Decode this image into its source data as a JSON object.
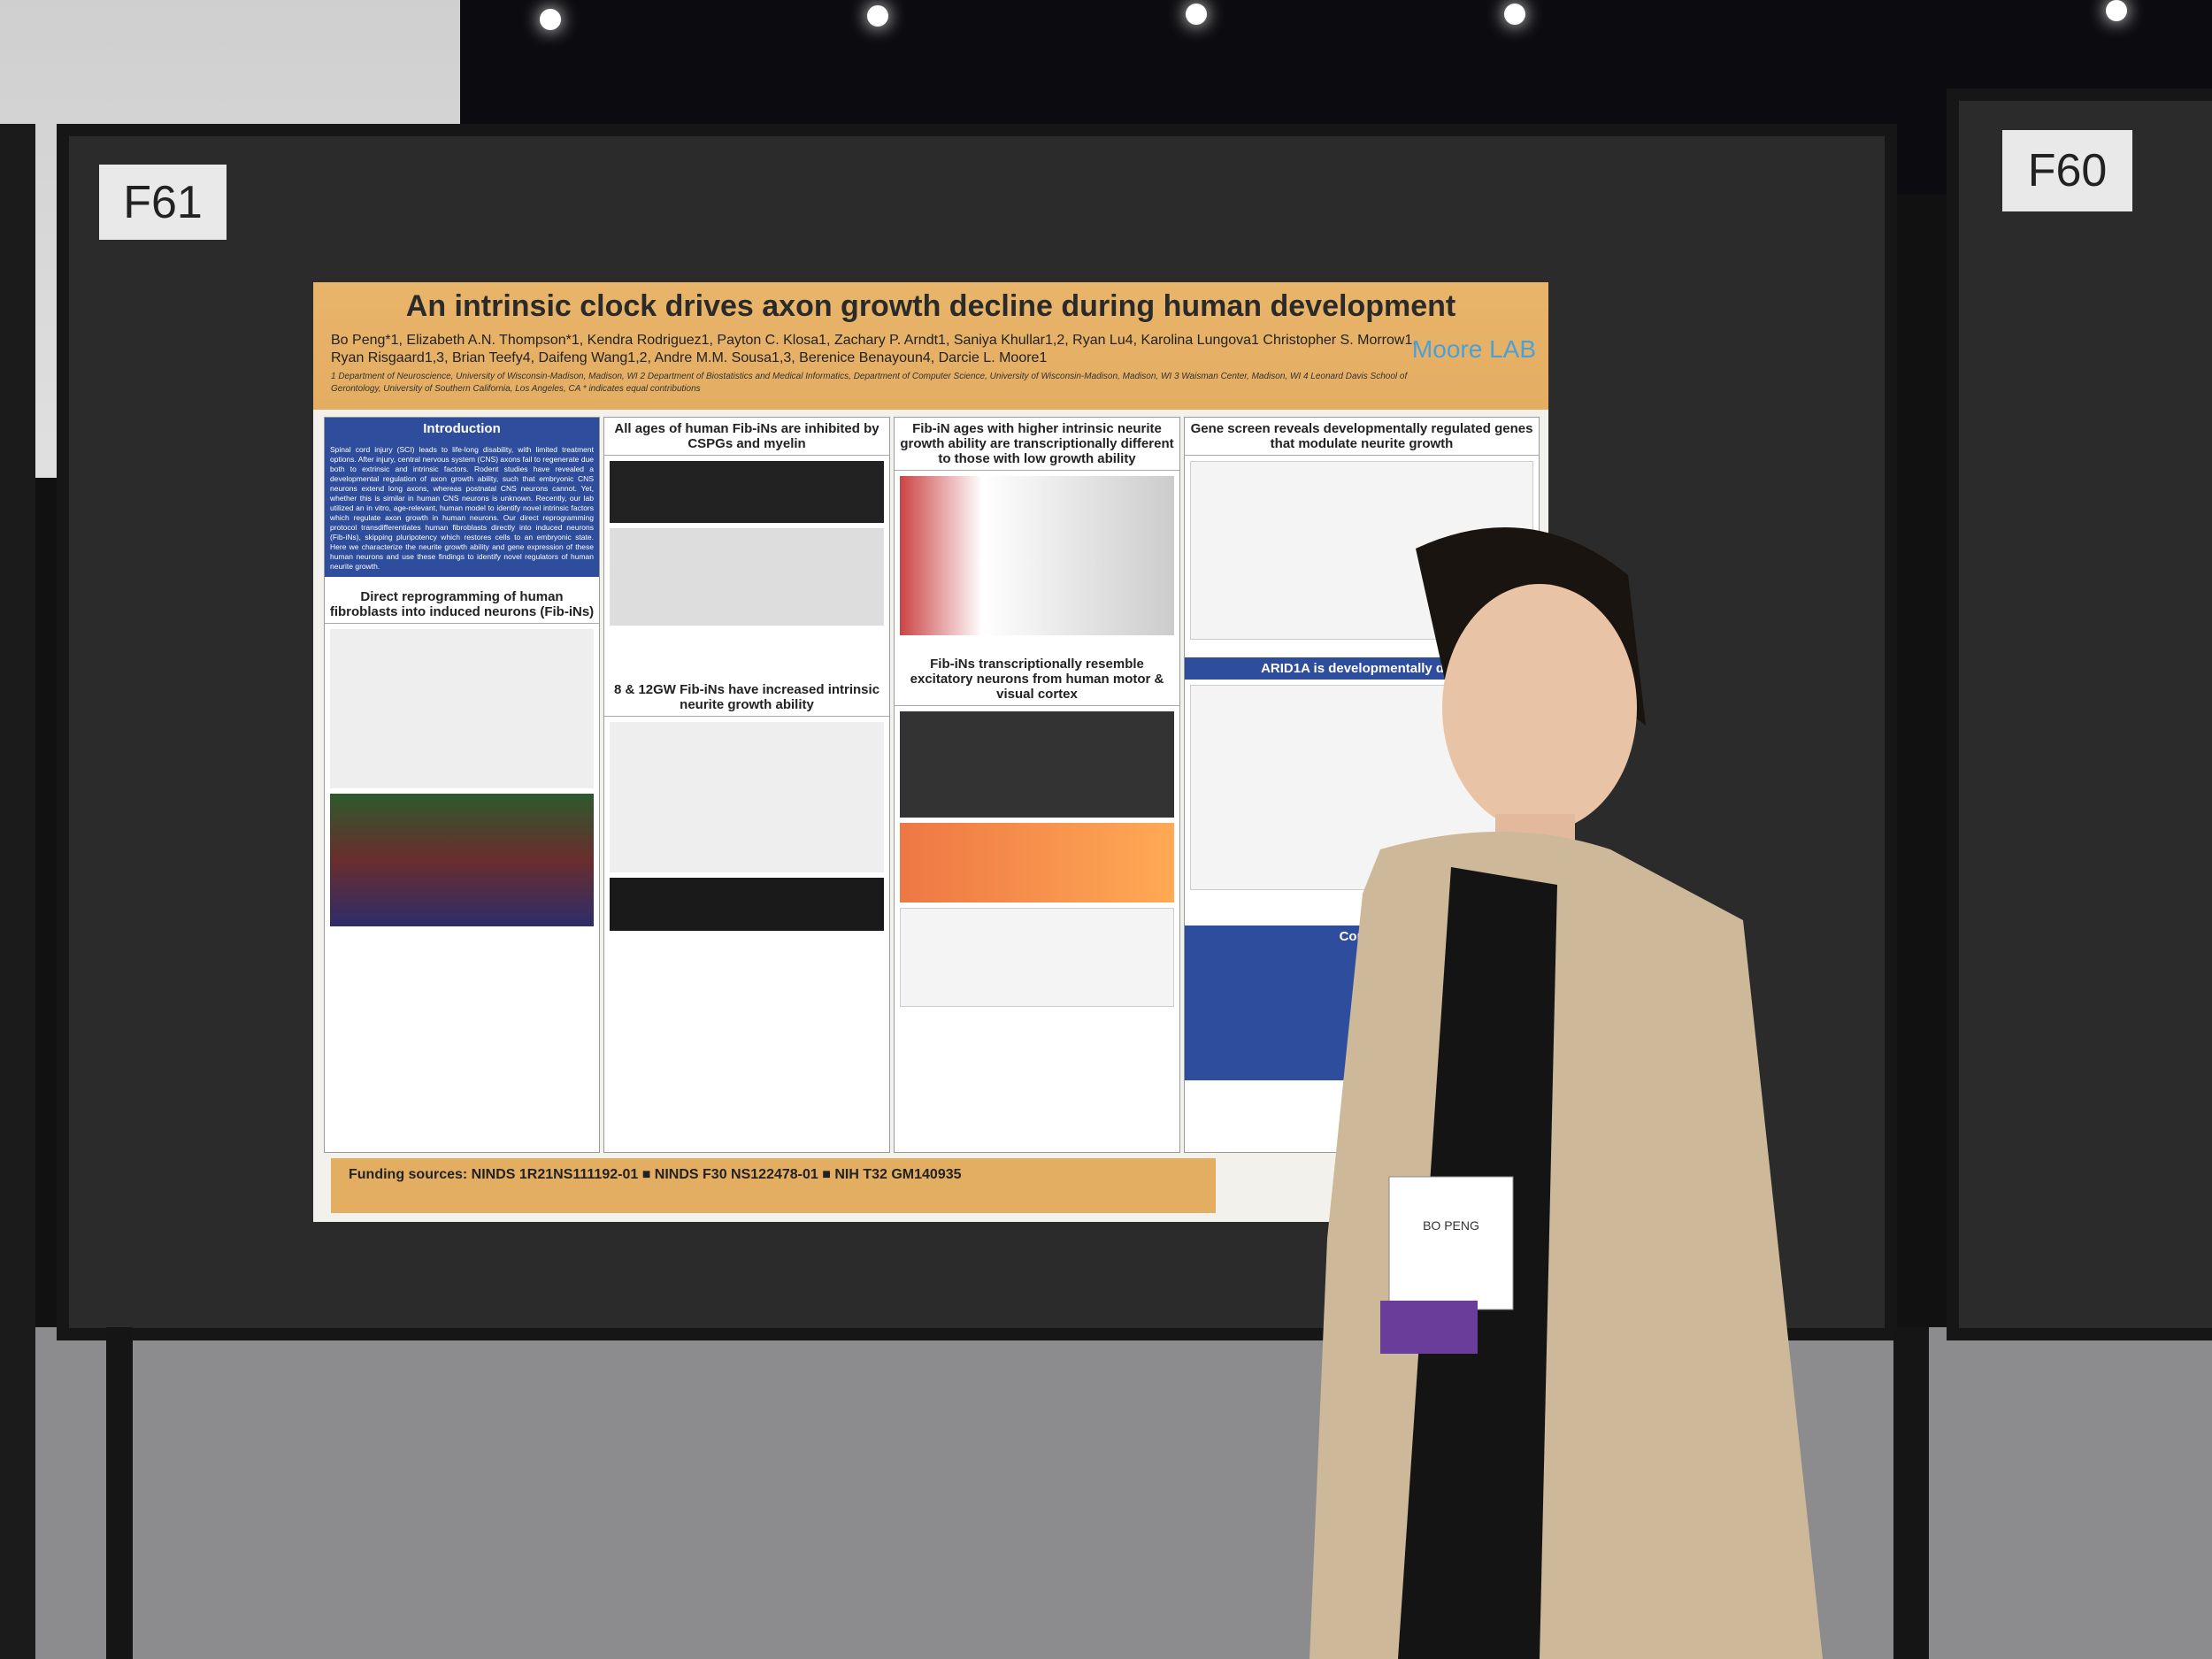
{
  "booths": {
    "left": "F61",
    "right": "F60"
  },
  "poster": {
    "title": "An intrinsic clock drives axon growth decline during human development",
    "authors": "Bo Peng*1, Elizabeth A.N. Thompson*1, Kendra Rodriguez1, Payton C. Klosa1, Zachary P. Arndt1, Saniya Khullar1,2, Ryan Lu4, Karolina Lungova1 Christopher S. Morrow1, Ryan Risgaard1,3, Brian Teefy4, Daifeng Wang1,2, Andre M.M. Sousa1,3, Berenice Benayoun4, Darcie L. Moore1",
    "affiliations": "1 Department of Neuroscience, University of Wisconsin-Madison, Madison, WI 2 Department of Biostatistics and Medical Informatics, Department of Computer Science, University of Wisconsin-Madison, Madison, WI 3 Waisman Center, Madison, WI 4 Leonard Davis School of Gerontology, University of Southern California, Los Angeles, CA * indicates equal contributions",
    "lab_logo": "Moore LAB",
    "sections": [
      {
        "heading": "Introduction",
        "body": "Spinal cord injury (SCI) leads to life-long disability, with limited treatment options. After injury, central nervous system (CNS) axons fail to regenerate due both to extrinsic and intrinsic factors. Rodent studies have revealed a developmental regulation of axon growth ability, such that embryonic CNS neurons extend long axons, whereas postnatal CNS neurons cannot. Yet, whether this is similar in human CNS neurons is unknown. Recently, our lab utilized an in vitro, age-relevant, human model to identify novel intrinsic factors which regulate axon growth in human neurons. Our direct reprogramming protocol transdifferentiates human fibroblasts directly into induced neurons (Fib-iNs), skipping pluripotency which restores cells to an embryonic state. Here we characterize the neurite growth ability and gene expression of these human neurons and use these findings to identify novel regulators of human neurite growth."
      },
      {
        "heading": "Direct reprogramming of human fibroblasts into induced neurons (Fib-iNs)"
      },
      {
        "heading": "All ages of human Fib-iNs are inhibited by CSPGs and myelin"
      },
      {
        "heading": "8 & 12GW Fib-iNs have increased intrinsic neurite growth ability"
      },
      {
        "heading": "Fib-iN ages with higher intrinsic neurite growth ability are transcriptionally different to those with low growth ability"
      },
      {
        "heading": "Fib-iNs transcriptionally resemble excitatory neurons from human motor & visual cortex"
      },
      {
        "heading": "Gene screen reveals developmentally regulated genes that modulate neurite growth"
      },
      {
        "heading": "ARID1A is developmentally dow"
      },
      {
        "heading": "Conclu"
      }
    ],
    "funding": "Funding sources: NINDS 1R21NS111192-01 ■ NINDS F30 NS122478-01 ■ NIH T32 GM140935"
  },
  "badge": {
    "name": "BO PENG"
  }
}
